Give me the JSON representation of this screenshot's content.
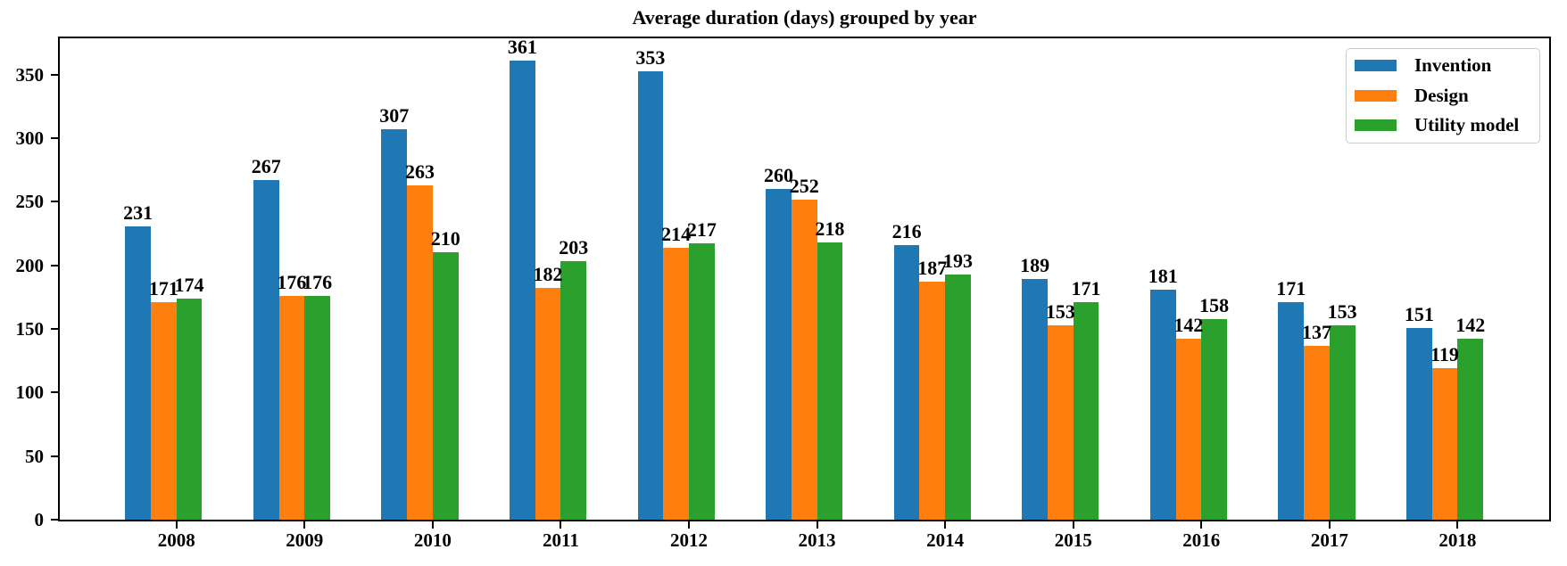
{
  "chart_data": {
    "type": "bar",
    "title": "Average duration (days) grouped by year",
    "categories": [
      "2008",
      "2009",
      "2010",
      "2011",
      "2012",
      "2013",
      "2014",
      "2015",
      "2016",
      "2017",
      "2018"
    ],
    "series": [
      {
        "name": "Invention",
        "color": "#1f77b4",
        "values": [
          231,
          267,
          307,
          361,
          353,
          260,
          216,
          189,
          181,
          171,
          151
        ]
      },
      {
        "name": "Design",
        "color": "#ff7f0e",
        "values": [
          171,
          176,
          263,
          182,
          214,
          252,
          187,
          153,
          142,
          137,
          119
        ]
      },
      {
        "name": "Utility model",
        "color": "#2ca02c",
        "values": [
          174,
          176,
          210,
          203,
          217,
          218,
          193,
          171,
          158,
          153,
          142
        ]
      }
    ],
    "xlabel": "",
    "ylabel": "",
    "ylim": [
      0,
      380
    ],
    "yticks": [
      0,
      50,
      100,
      150,
      200,
      250,
      300,
      350
    ],
    "value_labels_shown": true,
    "grid": false,
    "legend": {
      "position": "upper right",
      "entries": [
        "Invention",
        "Design",
        "Utility model"
      ]
    }
  },
  "colors": {
    "axis": "#000000",
    "text": "#000000",
    "background": "#ffffff",
    "legend_border": "#cccccc"
  }
}
